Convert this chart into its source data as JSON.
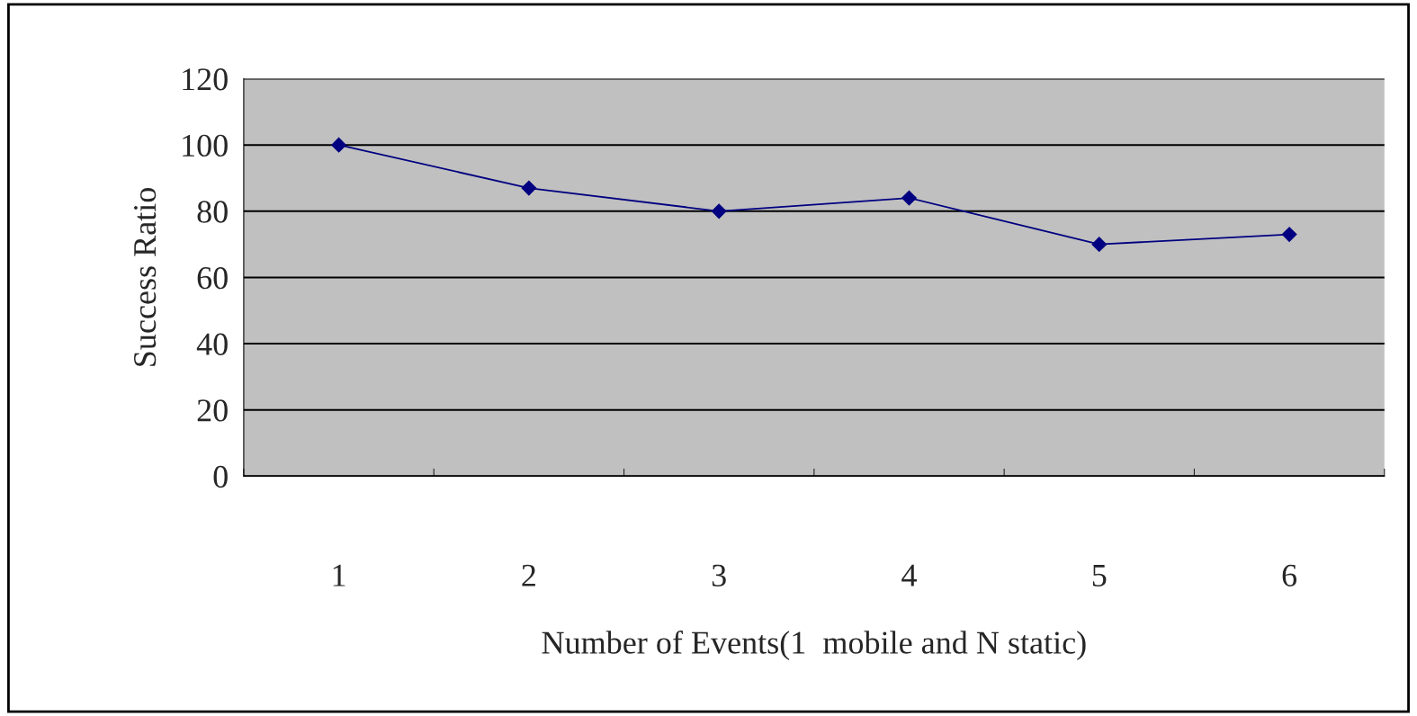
{
  "chart_data": {
    "type": "line",
    "xlabel": "Number of Events(1  mobile and N static)",
    "ylabel": "Success Ratio",
    "categories": [
      "1",
      "2",
      "3",
      "4",
      "5",
      "6"
    ],
    "series": [
      {
        "color": "#000080",
        "values": [
          100,
          87,
          80,
          84,
          70,
          73
        ]
      }
    ],
    "ylim": [
      0,
      120
    ],
    "yticks": [
      0,
      20,
      40,
      60,
      80,
      100,
      120
    ],
    "grid": "y",
    "marker": "diamond",
    "line_style": "solid"
  }
}
